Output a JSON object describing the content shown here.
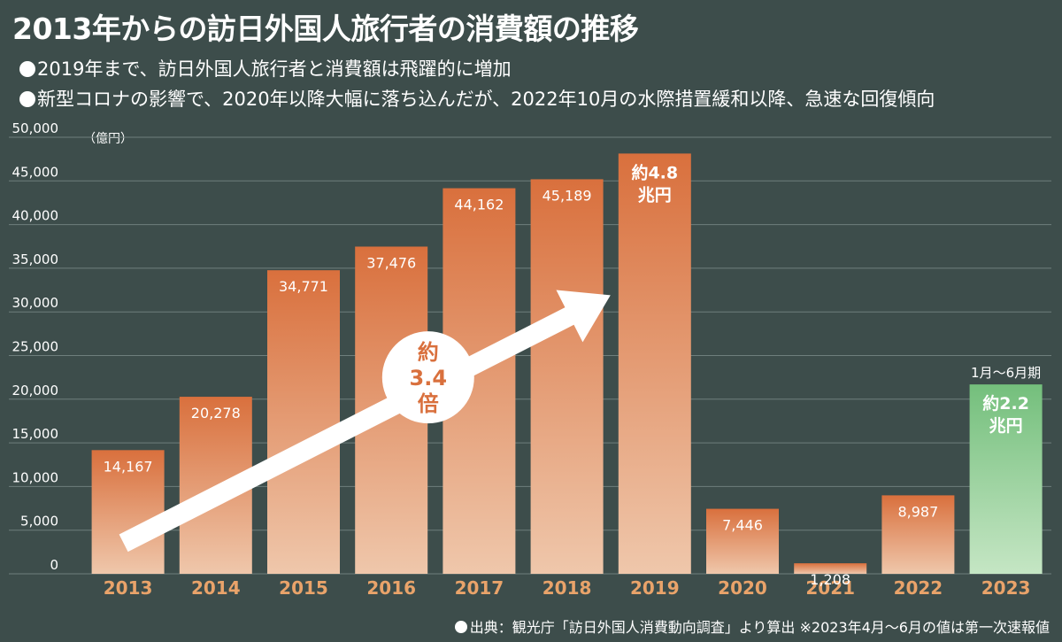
{
  "title": "2013年からの訪日外国人旅行者の消費額の推移",
  "bullets": [
    "2019年まで、訪日外国人旅行者と消費額は飛躍的に増加",
    "新型コロナの影響で、2020年以降大幅に落ち込んだが、2022年10月の水際措置緩和以降、急速な回復傾向"
  ],
  "unit_label": "（億円）",
  "footnote": "出典：観光庁「訪日外国人消費動向調査」より算出 ※2023年4月～6月の値は第一次速報値",
  "colors": {
    "background": "#3d4d4b",
    "bar": "#d9703d",
    "bar_2023": "#7fc485",
    "year_label": "#e9a36a"
  },
  "chart_data": {
    "type": "bar",
    "categories": [
      "2013",
      "2014",
      "2015",
      "2016",
      "2017",
      "2018",
      "2019",
      "2020",
      "2021",
      "2022",
      "2023"
    ],
    "values": [
      14167,
      20278,
      34771,
      37476,
      44162,
      45189,
      48135,
      7446,
      1208,
      8987,
      21691
    ],
    "data_labels": [
      "14,167",
      "20,278",
      "34,771",
      "37,476",
      "44,162",
      "45,189",
      "約4.8\n兆円",
      "7,446",
      "1,208",
      "8,987",
      "約2.2\n兆円"
    ],
    "ylim": [
      0,
      50000
    ],
    "yticks": [
      0,
      5000,
      10000,
      15000,
      20000,
      25000,
      30000,
      35000,
      40000,
      45000,
      50000
    ],
    "ytick_labels": [
      "0",
      "5,000",
      "10,000",
      "15,000",
      "20,000",
      "25,000",
      "30,000",
      "35,000",
      "40,000",
      "45,000",
      "50,000"
    ],
    "grid": true,
    "annotations": {
      "growth_circle": [
        "約",
        "3.4",
        "倍"
      ],
      "period_2023": "1月～6月期"
    }
  }
}
